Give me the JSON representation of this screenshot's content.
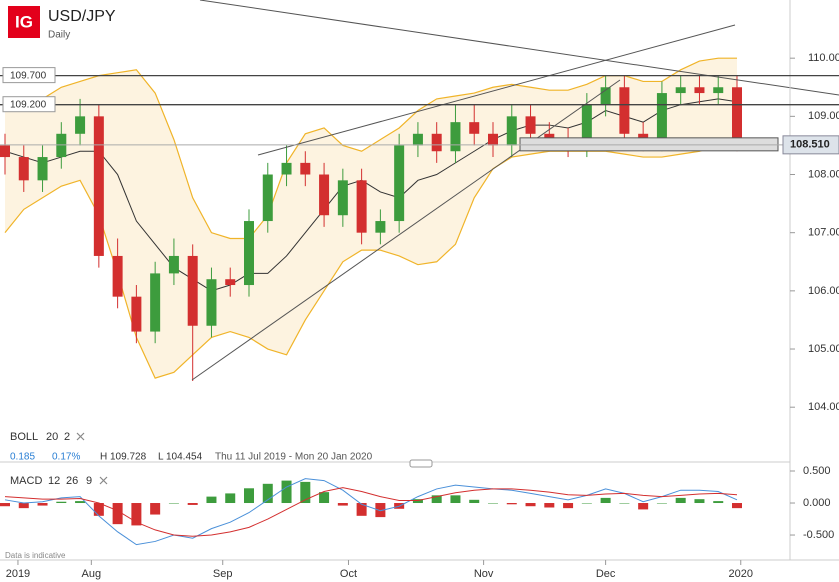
{
  "chart_data": {
    "type": "candlestick",
    "logo": "IG",
    "title": "USD/JPY",
    "subtitle": "Daily",
    "up_color": "#3d9c3d",
    "down_color": "#d32f2f",
    "xlim": [
      0,
      39
    ],
    "xticks": [
      {
        "value": 0.69,
        "label": "2019"
      },
      {
        "value": 4.6,
        "label": "Aug"
      },
      {
        "value": 11.6,
        "label": "Sep"
      },
      {
        "value": 18.3,
        "label": "Oct"
      },
      {
        "value": 25.5,
        "label": "Nov"
      },
      {
        "value": 32.0,
        "label": "Dec"
      },
      {
        "value": 39.2,
        "label": "2020"
      }
    ],
    "ylim": [
      103.35,
      111.0
    ],
    "yticks": [
      {
        "value": 104,
        "label": "104.000"
      },
      {
        "value": 105,
        "label": "105.000"
      },
      {
        "value": 106,
        "label": "106.000"
      },
      {
        "value": 107,
        "label": "107.000"
      },
      {
        "value": 108,
        "label": "108.000"
      },
      {
        "value": 109,
        "label": "109.000"
      },
      {
        "value": 110,
        "label": "110.000"
      }
    ],
    "open": [
      108.5,
      108.3,
      107.9,
      108.3,
      108.7,
      109.0,
      106.6,
      105.9,
      105.3,
      106.3,
      106.6,
      105.4,
      106.2,
      106.1,
      107.2,
      108.0,
      108.2,
      108.0,
      107.3,
      107.9,
      107.0,
      107.2,
      108.5,
      108.7,
      108.4,
      108.9,
      108.7,
      108.5,
      109.0,
      108.7,
      108.6,
      108.5,
      109.2,
      109.5,
      108.7,
      108.6,
      109.4,
      109.5,
      109.4,
      109.5
    ],
    "high": [
      108.7,
      108.5,
      108.5,
      108.9,
      109.3,
      109.2,
      106.9,
      106.1,
      106.5,
      106.9,
      106.8,
      106.4,
      106.4,
      107.4,
      108.2,
      108.5,
      108.4,
      108.2,
      108.1,
      108.1,
      107.4,
      108.7,
      108.9,
      108.9,
      109.2,
      109.2,
      108.9,
      109.2,
      109.2,
      108.9,
      108.8,
      109.4,
      109.7,
      109.7,
      108.9,
      109.6,
      109.7,
      109.7,
      109.7,
      109.7
    ],
    "low": [
      108.0,
      107.7,
      107.7,
      108.1,
      108.5,
      106.4,
      105.7,
      105.1,
      105.1,
      106.1,
      104.45,
      105.2,
      105.9,
      105.9,
      107.0,
      107.8,
      107.8,
      107.1,
      107.1,
      106.8,
      106.8,
      107.0,
      108.3,
      108.2,
      108.2,
      108.5,
      108.3,
      108.3,
      108.5,
      108.4,
      108.3,
      108.3,
      109.0,
      108.5,
      108.4,
      108.4,
      109.2,
      109.2,
      109.2,
      108.4
    ],
    "close": [
      108.3,
      107.9,
      108.3,
      108.7,
      109.0,
      106.6,
      105.9,
      105.3,
      106.3,
      106.6,
      105.4,
      106.2,
      106.1,
      107.2,
      108.0,
      108.2,
      108.0,
      107.3,
      107.9,
      107.0,
      107.2,
      108.5,
      108.7,
      108.4,
      108.9,
      108.7,
      108.5,
      109.0,
      108.7,
      108.6,
      108.5,
      109.2,
      109.5,
      108.7,
      108.6,
      109.4,
      109.5,
      109.4,
      109.5,
      108.5
    ],
    "levels": [
      {
        "value": 109.7,
        "label": "109.700"
      },
      {
        "value": 109.2,
        "label": "109.200"
      }
    ],
    "last_price": {
      "value": 108.51,
      "label": "108.510"
    },
    "bands": {
      "label": "BOLL",
      "params": [
        20,
        2
      ],
      "color": "#f0b429",
      "fill": "#fdf3e0",
      "middle_color": "#333333",
      "upper": [
        109.1,
        109.2,
        109.3,
        109.5,
        109.6,
        109.7,
        109.75,
        109.8,
        109.4,
        108.6,
        107.6,
        107.0,
        106.9,
        106.9,
        107.3,
        108.2,
        108.7,
        108.8,
        108.5,
        108.4,
        108.6,
        108.8,
        109.1,
        109.3,
        109.35,
        109.4,
        109.5,
        109.55,
        109.5,
        109.45,
        109.45,
        109.55,
        109.7,
        109.7,
        109.6,
        109.6,
        109.8,
        109.95,
        110.0,
        110.0
      ],
      "middle": [
        108.4,
        108.3,
        108.2,
        108.3,
        108.4,
        108.4,
        108.0,
        107.2,
        106.8,
        106.4,
        106.2,
        106.0,
        106.1,
        106.3,
        106.3,
        106.6,
        107.0,
        107.4,
        107.8,
        107.9,
        107.7,
        107.6,
        107.9,
        108.0,
        108.2,
        108.4,
        108.6,
        108.75,
        108.85,
        108.85,
        108.8,
        108.9,
        109.1,
        109.0,
        108.9,
        109.1,
        109.2,
        109.25,
        109.3,
        109.25
      ],
      "lower": [
        107.0,
        107.4,
        107.6,
        107.8,
        107.9,
        107.3,
        106.3,
        105.2,
        104.5,
        104.6,
        104.9,
        105.2,
        105.3,
        105.2,
        105.0,
        104.9,
        105.5,
        106.0,
        106.5,
        106.7,
        106.7,
        106.6,
        106.45,
        106.5,
        106.8,
        107.6,
        108.1,
        108.3,
        108.35,
        108.4,
        108.4,
        108.4,
        108.4,
        108.35,
        108.3,
        108.3,
        108.35,
        108.4,
        108.5,
        108.6
      ]
    },
    "info": {
      "change": "0.185",
      "change_pct": "0.17%",
      "high_label": "H",
      "high": "109.728",
      "low_label": "L",
      "low": "104.454",
      "range": "Thu 11 Jul 2019 - Mon 20 Jan 2020"
    },
    "macd": {
      "label": "MACD",
      "params": [
        12,
        26,
        9
      ],
      "ylim": [
        -0.89,
        0.625
      ],
      "yticks": [
        {
          "value": 0.5,
          "label": "0.500"
        },
        {
          "value": 0,
          "label": "0.000"
        },
        {
          "value": -0.5,
          "label": "-0.500"
        }
      ],
      "macd_color": "#4a90d9",
      "signal_color": "#d32f2f",
      "macd": [
        0.05,
        0.0,
        0.02,
        0.08,
        0.1,
        -0.2,
        -0.45,
        -0.65,
        -0.6,
        -0.5,
        -0.55,
        -0.4,
        -0.3,
        -0.15,
        0.05,
        0.25,
        0.38,
        0.35,
        0.2,
        -0.02,
        -0.12,
        -0.05,
        0.1,
        0.22,
        0.28,
        0.25,
        0.22,
        0.2,
        0.15,
        0.1,
        0.05,
        0.12,
        0.22,
        0.15,
        0.02,
        0.1,
        0.2,
        0.2,
        0.18,
        0.05
      ],
      "signal": [
        0.1,
        0.08,
        0.06,
        0.06,
        0.07,
        0.0,
        -0.12,
        -0.3,
        -0.42,
        -0.5,
        -0.52,
        -0.5,
        -0.45,
        -0.38,
        -0.25,
        -0.1,
        0.05,
        0.18,
        0.24,
        0.18,
        0.1,
        0.04,
        0.04,
        0.1,
        0.16,
        0.2,
        0.22,
        0.22,
        0.2,
        0.17,
        0.13,
        0.12,
        0.14,
        0.15,
        0.12,
        0.1,
        0.12,
        0.14,
        0.15,
        0.13
      ],
      "histogram": [
        -0.05,
        -0.08,
        -0.04,
        0.02,
        0.03,
        -0.2,
        -0.33,
        -0.35,
        -0.18,
        0.0,
        -0.03,
        0.1,
        0.15,
        0.23,
        0.3,
        0.35,
        0.33,
        0.17,
        -0.04,
        -0.2,
        -0.22,
        -0.09,
        0.06,
        0.12,
        0.12,
        0.05,
        0.0,
        -0.02,
        -0.05,
        -0.07,
        -0.08,
        0.0,
        0.08,
        0.0,
        -0.1,
        0.0,
        0.08,
        0.06,
        0.03,
        -0.08
      ]
    },
    "footnote": "Data is indicative"
  }
}
